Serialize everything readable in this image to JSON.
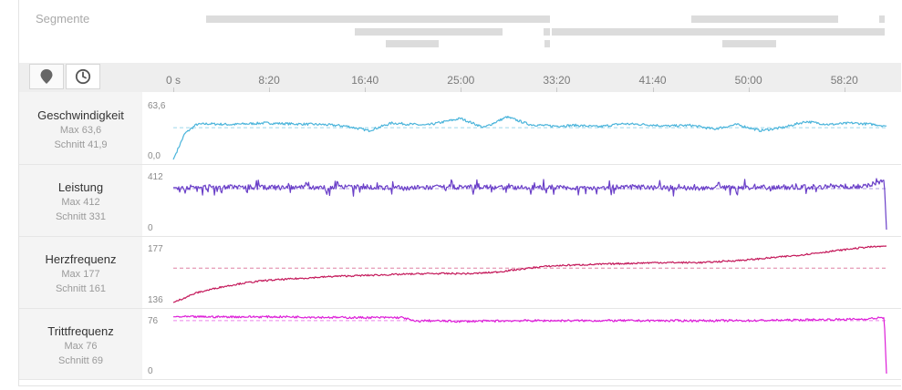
{
  "segments": {
    "label": "Segmente",
    "color": "#dcdcdc"
  },
  "toolbar": {
    "location_icon": "map-pin-icon",
    "time_icon": "clock-icon"
  },
  "timeline": {
    "ticks": [
      "0 s",
      "8:20",
      "16:40",
      "25:00",
      "33:20",
      "41:40",
      "50:00",
      "58:20"
    ]
  },
  "lanes": [
    {
      "name": "Geschwindigkeit",
      "max": "Max 63,6",
      "avg": "Schnitt 41,9",
      "ytop": "63,6",
      "ybottom": "0,0",
      "color": "#4ab4db"
    },
    {
      "name": "Leistung",
      "max": "Max 412",
      "avg": "Schnitt 331",
      "ytop": "412",
      "ybottom": "0",
      "color": "#6a3fc8"
    },
    {
      "name": "Herzfrequenz",
      "max": "Max 177",
      "avg": "Schnitt 161",
      "ytop": "177",
      "ybottom": "136",
      "color": "#c4185a"
    },
    {
      "name": "Trittfrequenz",
      "max": "Max 76",
      "avg": "Schnitt 69",
      "ytop": "76",
      "ybottom": "0",
      "color": "#dd1fd8"
    }
  ],
  "chart_data": [
    {
      "type": "line",
      "title": "Geschwindigkeit",
      "ylim": [
        0,
        63.6
      ],
      "average": 41.9,
      "x": [
        0,
        1,
        2,
        3,
        5,
        8,
        10,
        13,
        15,
        17,
        19,
        22,
        25,
        27,
        29,
        31,
        33,
        35,
        37,
        39,
        41,
        43,
        45,
        47,
        49,
        51,
        53,
        55,
        57,
        59,
        61,
        62
      ],
      "y": [
        0,
        34,
        46,
        47,
        46,
        48,
        47,
        46,
        44,
        38,
        48,
        45,
        54,
        42,
        56,
        46,
        44,
        45,
        43,
        47,
        46,
        44,
        45,
        40,
        46,
        38,
        42,
        50,
        46,
        48,
        46,
        44
      ]
    },
    {
      "type": "line",
      "title": "Leistung",
      "ylim": [
        0,
        412
      ],
      "average": 331,
      "x": [
        0,
        5,
        10,
        15,
        20,
        25,
        30,
        35,
        40,
        45,
        50,
        55,
        60,
        61.8,
        62
      ],
      "y": [
        340,
        345,
        338,
        342,
        336,
        344,
        340,
        338,
        342,
        336,
        340,
        344,
        350,
        400,
        0
      ]
    },
    {
      "type": "line",
      "title": "Herzfrequenz",
      "ylim": [
        136,
        177
      ],
      "average": 161,
      "x": [
        0,
        2,
        4,
        6,
        8,
        10,
        14,
        18,
        22,
        26,
        28,
        30,
        32,
        34,
        38,
        42,
        46,
        50,
        54,
        58,
        60,
        62
      ],
      "y": [
        136,
        143,
        147,
        150,
        152,
        153,
        155,
        156,
        157,
        157,
        158,
        160,
        162,
        163,
        164,
        165,
        165,
        167,
        170,
        174,
        176,
        177
      ]
    },
    {
      "type": "line",
      "title": "Trittfrequenz",
      "ylim": [
        0,
        76
      ],
      "average": 69,
      "x": [
        0,
        5,
        10,
        15,
        20,
        21,
        22,
        25,
        30,
        35,
        40,
        45,
        50,
        55,
        60,
        61.8,
        62
      ],
      "y": [
        74,
        74,
        74,
        73,
        73,
        68,
        69,
        68,
        69,
        69,
        69,
        69,
        69,
        70,
        71,
        73,
        0
      ]
    }
  ]
}
